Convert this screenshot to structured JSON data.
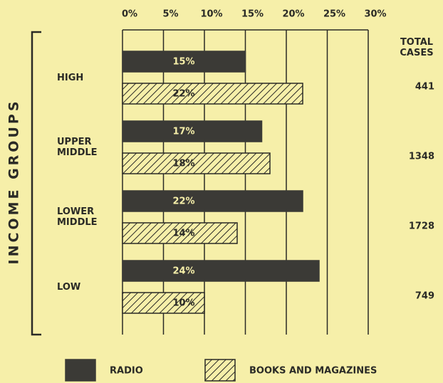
{
  "chart_data": {
    "type": "bar",
    "orientation": "horizontal",
    "axis_label": "INCOME GROUPS",
    "categories": [
      "HIGH",
      "UPPER MIDDLE",
      "LOWER MIDDLE",
      "LOW"
    ],
    "series": [
      {
        "name": "RADIO",
        "color": "#3b3a36",
        "values": [
          15,
          17,
          22,
          24
        ],
        "value_labels": [
          "15%",
          "17%",
          "22%",
          "24%"
        ]
      },
      {
        "name": "BOOKS AND MAGAZINES",
        "color": "#2a2a26",
        "pattern": "hatch",
        "values": [
          22,
          18,
          14,
          10
        ],
        "value_labels": [
          "22%",
          "18%",
          "14%",
          "10%"
        ]
      }
    ],
    "total_cases": {
      "label": "TOTAL CASES",
      "values": [
        441,
        1348,
        1728,
        749
      ]
    },
    "xlim": [
      0,
      30
    ],
    "xticks": [
      {
        "value": 0,
        "label": "0%"
      },
      {
        "value": 5,
        "label": "5%"
      },
      {
        "value": 10,
        "label": "10%"
      },
      {
        "value": 15,
        "label": "15%"
      },
      {
        "value": 20,
        "label": "20%"
      },
      {
        "value": 25,
        "label": "25%"
      },
      {
        "value": 30,
        "label": "30%"
      }
    ],
    "grid": true,
    "legend": "bottom"
  }
}
